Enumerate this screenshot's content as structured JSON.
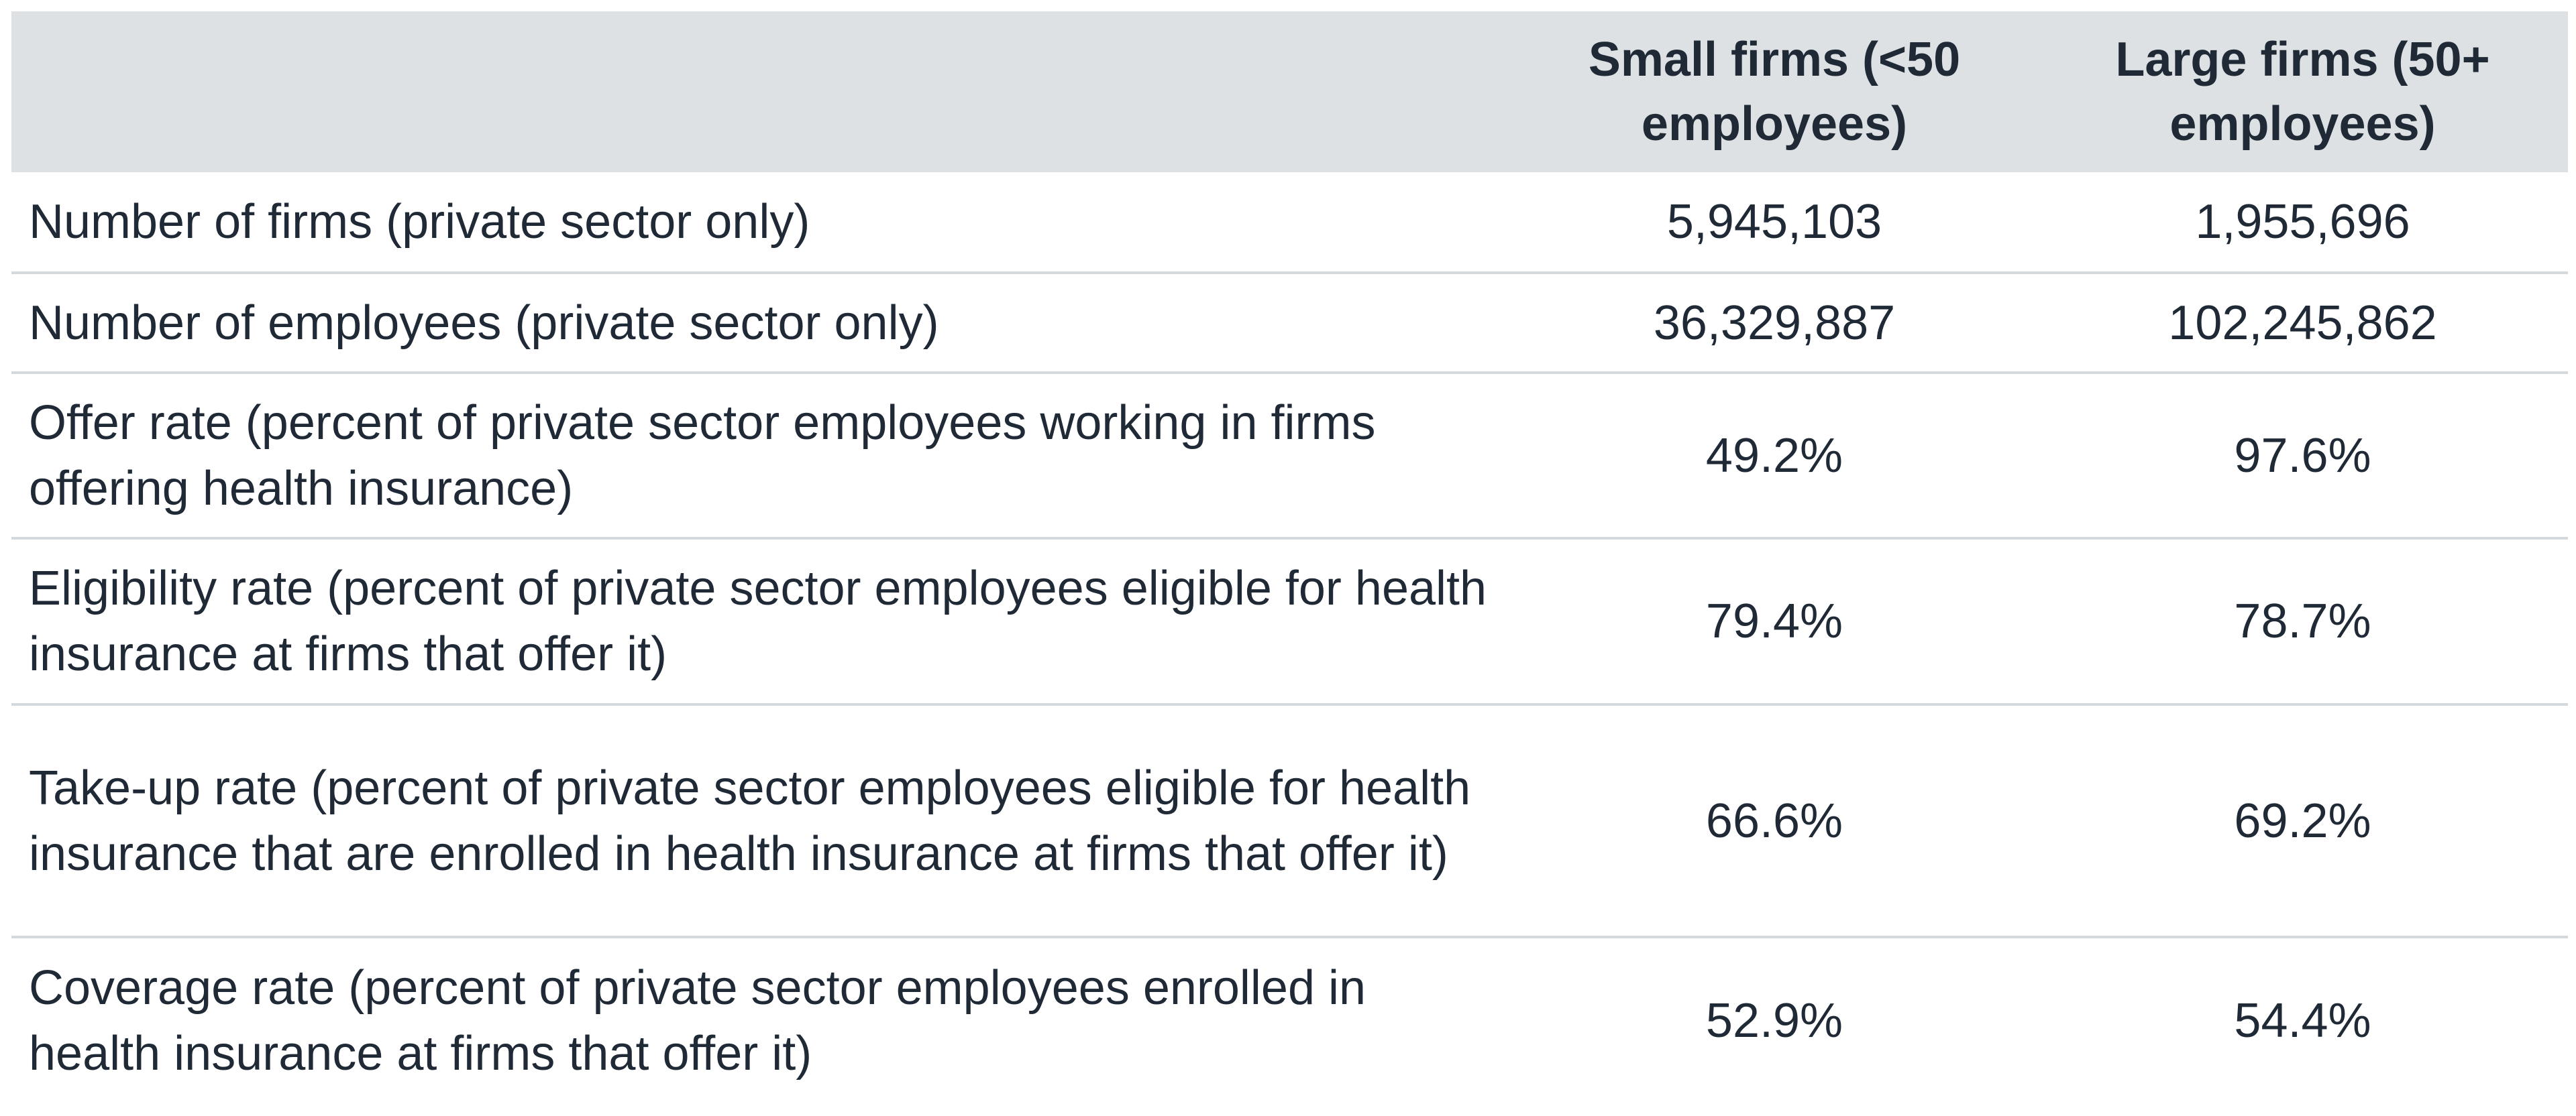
{
  "table": {
    "columns": [
      "Small firms (<50 employees)",
      "Large firms (50+ employees)"
    ],
    "rows": [
      [
        "Number of firms (private sector only)",
        "5,945,103",
        "1,955,696"
      ],
      [
        "Number of employees (private sector only)",
        "36,329,887",
        "102,245,862"
      ],
      [
        "Offer rate (percent of private sector employees working in firms offering health insurance)",
        "49.2%",
        "97.6%"
      ],
      [
        "Eligibility rate (percent of private sector employees eligible for health insurance at firms that offer it)",
        "79.4%",
        "78.7%"
      ],
      [
        "Take-up rate (percent of private sector employees eligible for health insurance that are enrolled in health insurance at firms that offer it)",
        "66.6%",
        "69.2%"
      ],
      [
        "Coverage rate (percent of private sector employees enrolled in health insurance at firms that offer it)",
        "52.9%",
        "54.4%"
      ]
    ]
  }
}
